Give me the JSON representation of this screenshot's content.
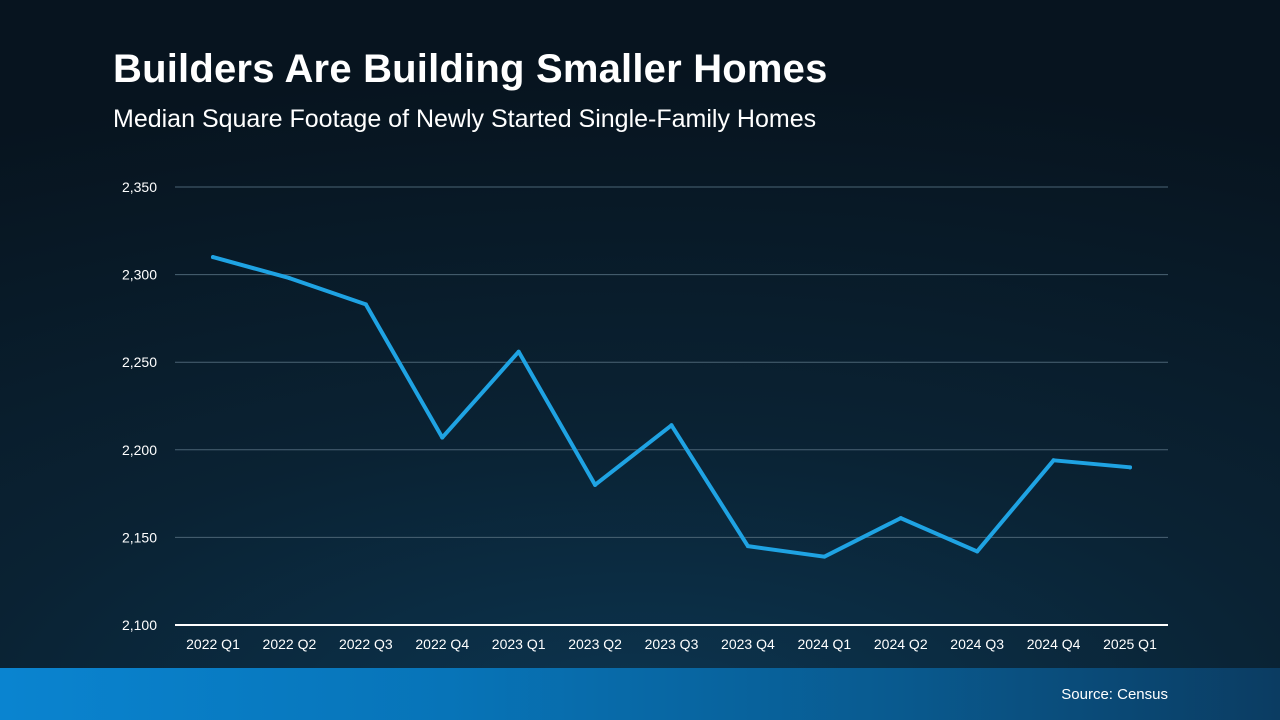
{
  "title": "Builders Are Building Smaller Homes",
  "subtitle": "Median Square Footage of Newly Started Single-Family Homes",
  "source": "Source: Census",
  "colors": {
    "line": "#1fa3e3",
    "gridline": "#4a6374",
    "axis": "#ffffff",
    "footer": "#0a84d0"
  },
  "chart_data": {
    "type": "line",
    "title": "Median Square Footage of Newly Started Single-Family Homes",
    "xlabel": "",
    "ylabel": "",
    "ylim": [
      2100,
      2350
    ],
    "ytick_values": [
      2100,
      2150,
      2200,
      2250,
      2300,
      2350
    ],
    "yticks": [
      "2,100",
      "2,150",
      "2,200",
      "2,250",
      "2,300",
      "2,350"
    ],
    "grid": true,
    "categories": [
      "2022 Q1",
      "2022 Q2",
      "2022 Q3",
      "2022 Q4",
      "2023 Q1",
      "2023 Q2",
      "2023 Q3",
      "2023 Q4",
      "2024 Q1",
      "2024 Q2",
      "2024 Q3",
      "2024 Q4",
      "2025 Q1"
    ],
    "series": [
      {
        "name": "Median Square Footage",
        "values": [
          2310,
          2298,
          2283,
          2207,
          2256,
          2180,
          2214,
          2145,
          2139,
          2161,
          2142,
          2194,
          2190
        ]
      }
    ]
  }
}
